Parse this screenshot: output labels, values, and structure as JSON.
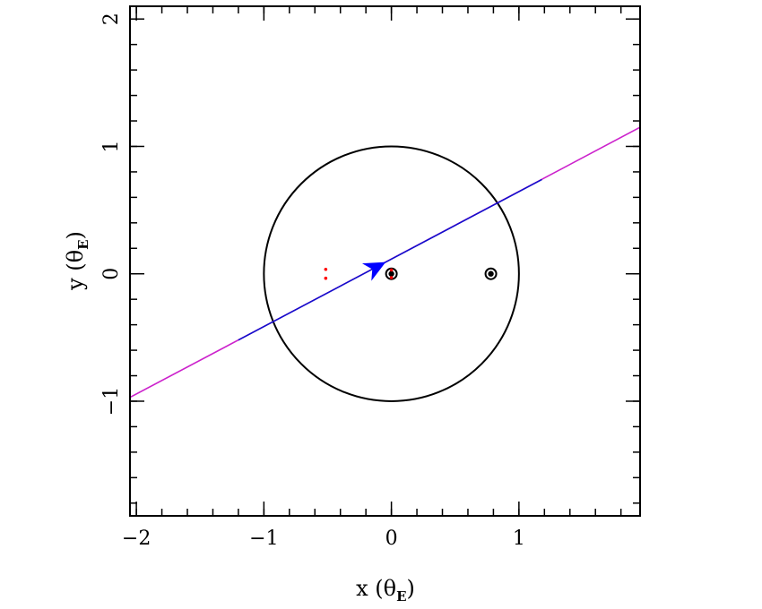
{
  "chart_data": {
    "type": "scatter",
    "xlim": [
      -2.05,
      1.95
    ],
    "ylim": [
      -1.9,
      2.1
    ],
    "xticks": [
      {
        "value": -2,
        "label": "−2"
      },
      {
        "value": -1,
        "label": "−1"
      },
      {
        "value": 0,
        "label": "0"
      },
      {
        "value": 1,
        "label": "1"
      }
    ],
    "yticks": [
      {
        "value": -1,
        "label": "−1"
      },
      {
        "value": 0,
        "label": "0"
      },
      {
        "value": 1,
        "label": "1"
      },
      {
        "value": 2,
        "label": "2"
      }
    ],
    "minor_step": 0.2,
    "xlabel": {
      "text": "x (θ",
      "sub": "E",
      "close": ")"
    },
    "ylabel": {
      "text": "y (θ",
      "sub": "E",
      "close": ")"
    },
    "grid": false,
    "einstein_ring": {
      "center": [
        0,
        0
      ],
      "radius": 1.0,
      "color": "#000000"
    },
    "trajectory": {
      "start": [
        -2.05,
        -0.97
      ],
      "end": [
        1.95,
        1.15
      ],
      "inner_start": [
        -1.2,
        -0.52
      ],
      "inner_end": [
        1.18,
        0.74
      ],
      "outer_color": "#cc22cc",
      "inner_color": "#1010cc"
    },
    "direction_arrow": {
      "x": 0.04,
      "y": 0.12,
      "color": "#0000ff"
    },
    "lenses": [
      {
        "x": 0.0,
        "y": 0.0
      },
      {
        "x": 0.78,
        "y": 0.0
      }
    ],
    "caustic_points": [
      {
        "x": -0.515,
        "y": 0.035
      },
      {
        "x": -0.515,
        "y": -0.035
      },
      {
        "x": 0.0,
        "y": 0.03
      },
      {
        "x": 0.0,
        "y": -0.03
      }
    ],
    "caustic_color": "#ff0000"
  }
}
